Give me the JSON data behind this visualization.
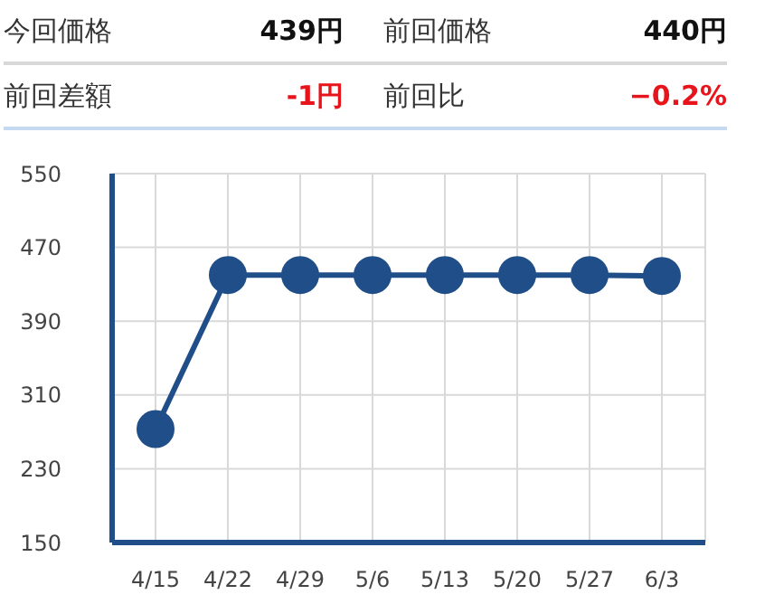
{
  "chart_data": {
    "type": "line",
    "annotations": [
      "今回価格",
      "439円",
      "前回価格",
      "440円",
      "前回差額",
      "-1円",
      "前回比",
      "−0.2%"
    ],
    "categories": [
      "4/15",
      "4/22",
      "4/29",
      "5/6",
      "5/13",
      "5/20",
      "5/27",
      "6/3"
    ],
    "series": [
      {
        "color": "#1f4e89",
        "values": [
          273,
          440,
          440,
          440,
          440,
          440,
          440,
          439
        ]
      }
    ],
    "ylim": [
      150,
      550
    ],
    "yticks": [
      150,
      230,
      310,
      390,
      470,
      550
    ],
    "grid": true,
    "marker": "circle",
    "line_style": "solid",
    "legend": false
  }
}
